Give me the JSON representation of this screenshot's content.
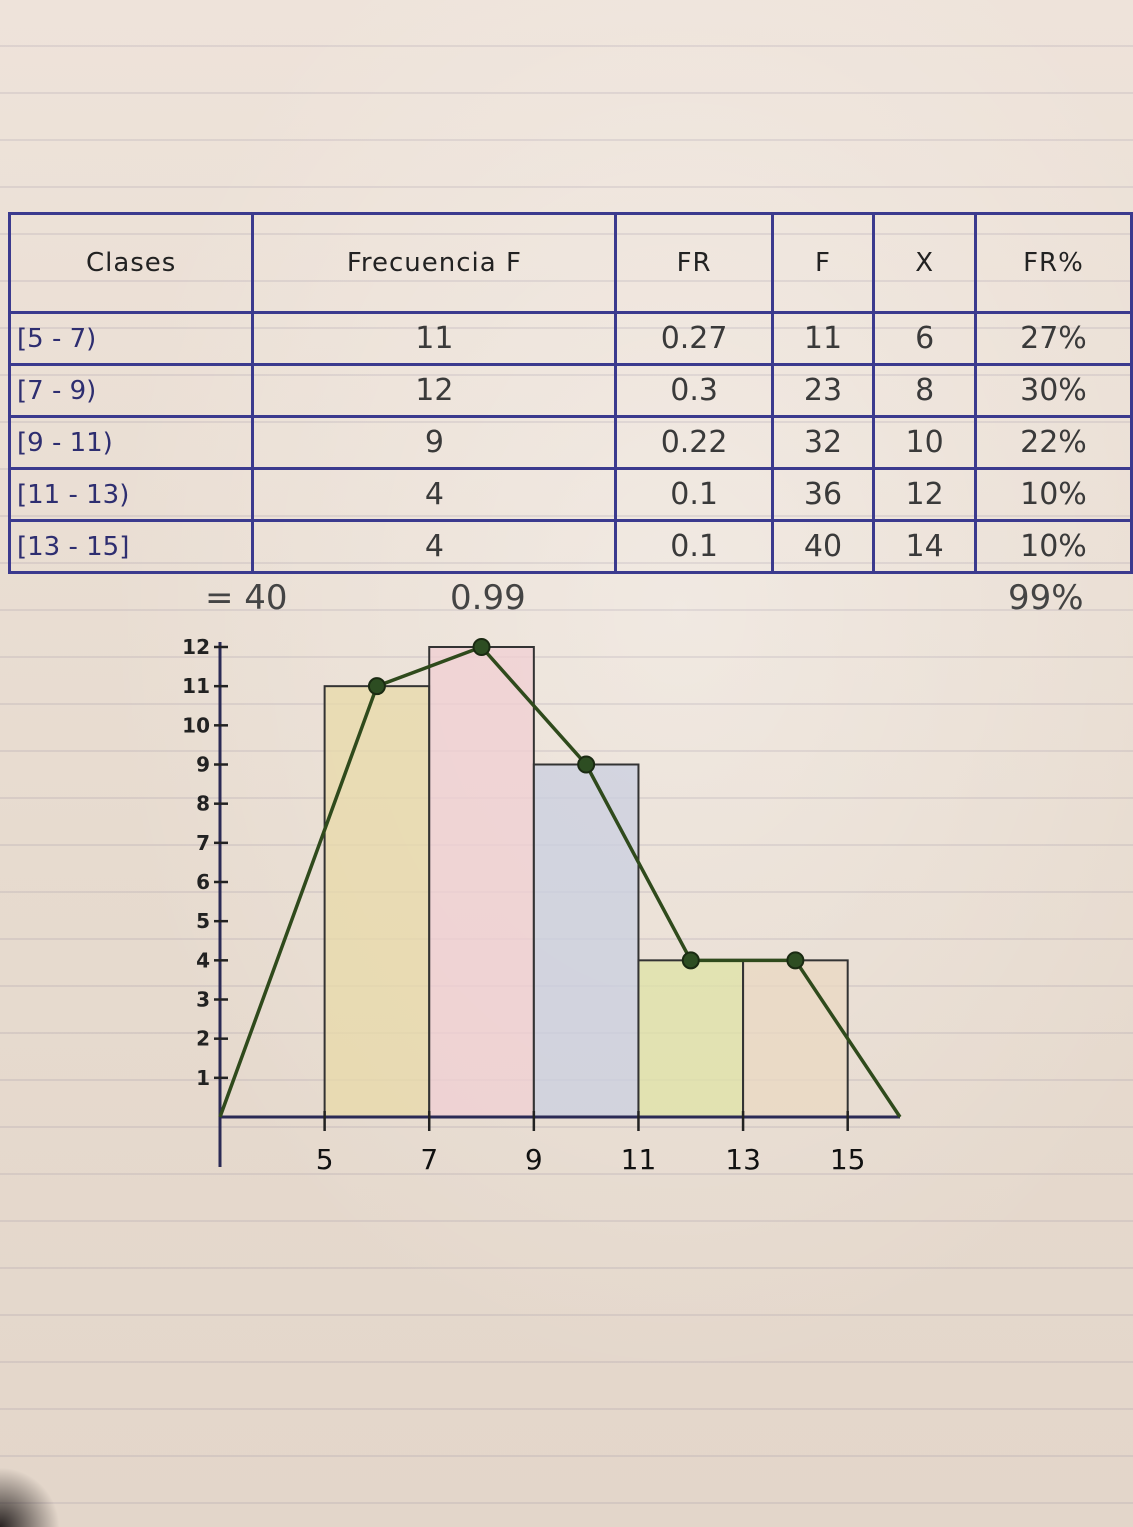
{
  "table": {
    "headers": [
      "Clases",
      "Frecuencia F",
      "FR",
      "F",
      "X",
      "FR%"
    ],
    "rows": [
      {
        "clase": "[5 - 7)",
        "frecuencia": "11",
        "fr": "0.27",
        "F": "11",
        "x": "6",
        "fr_pct": "27%"
      },
      {
        "clase": "[7 - 9)",
        "frecuencia": "12",
        "fr": "0.3",
        "F": "23",
        "x": "8",
        "fr_pct": "30%"
      },
      {
        "clase": "[9 - 11)",
        "frecuencia": "9",
        "fr": "0.22",
        "F": "32",
        "x": "10",
        "fr_pct": "22%"
      },
      {
        "clase": "[11 - 13)",
        "frecuencia": "4",
        "fr": "0.1",
        "F": "36",
        "x": "12",
        "fr_pct": "10%"
      },
      {
        "clase": "[13 - 15]",
        "frecuencia": "4",
        "fr": "0.1",
        "F": "40",
        "x": "14",
        "fr_pct": "10%"
      }
    ],
    "totals": {
      "frecuencia": "= 40",
      "fr": "0.99",
      "fr_pct": "99%"
    }
  },
  "chart_data": {
    "type": "bar",
    "title": "",
    "xlabel": "",
    "ylabel": "",
    "bins": [
      [
        5,
        7
      ],
      [
        7,
        9
      ],
      [
        9,
        11
      ],
      [
        11,
        13
      ],
      [
        13,
        15
      ]
    ],
    "values": [
      11,
      12,
      9,
      4,
      4
    ],
    "bar_colors": [
      "#e8d9a8",
      "#f0cfd3",
      "#c9cfe0",
      "#dfe3a6",
      "#ead8c2"
    ],
    "polygon": {
      "x": [
        3,
        6,
        8,
        10,
        12,
        14,
        16
      ],
      "y": [
        0,
        11,
        12,
        9,
        4,
        4,
        0
      ]
    },
    "x_ticks": [
      5,
      7,
      9,
      11,
      13,
      15
    ],
    "y_ticks": [
      1,
      2,
      3,
      4,
      5,
      6,
      7,
      8,
      9,
      10,
      11,
      12
    ],
    "xlim": [
      3,
      16
    ],
    "ylim": [
      0,
      12
    ],
    "grid": false
  }
}
